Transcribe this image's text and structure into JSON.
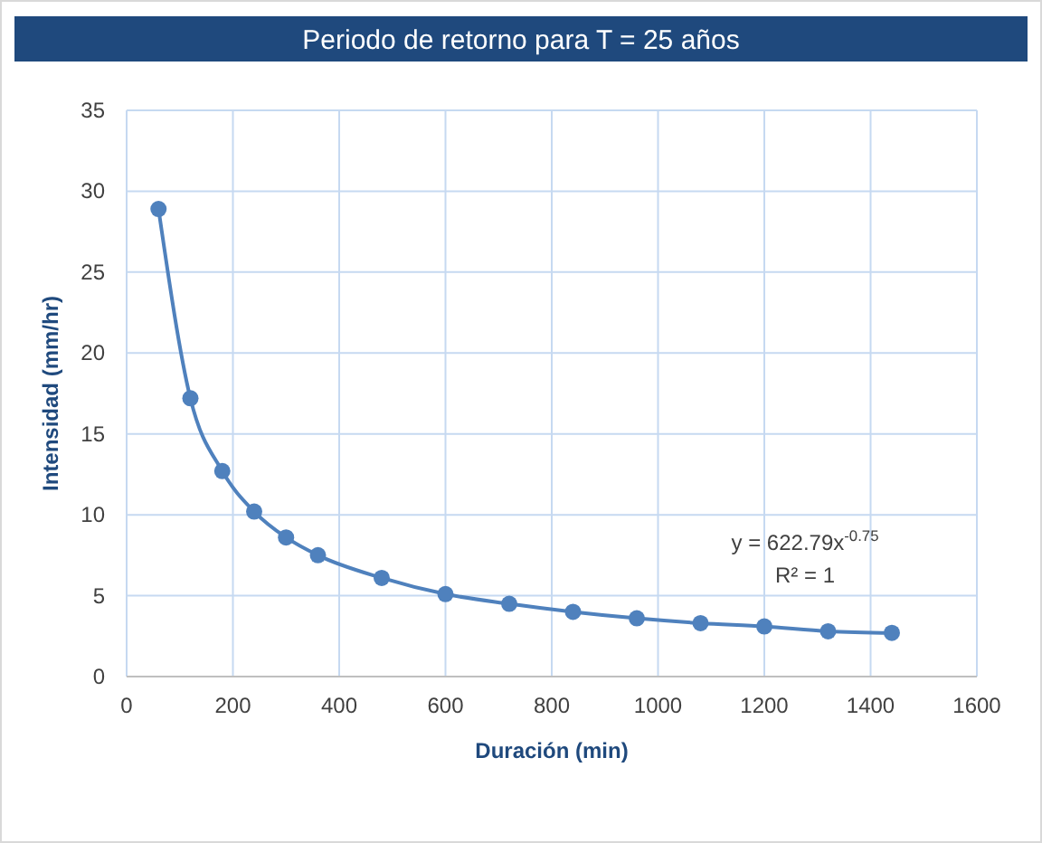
{
  "chart_data": {
    "type": "line",
    "title": "Periodo de retorno para T = 25 años",
    "xlabel": "Duración (min)",
    "ylabel": "Intensidad (mm/hr)",
    "x": [
      60,
      120,
      180,
      240,
      300,
      360,
      480,
      600,
      720,
      840,
      960,
      1080,
      1200,
      1320,
      1440
    ],
    "series": [
      {
        "color": "#4f81bd",
        "values": [
          28.9,
          17.2,
          12.7,
          10.2,
          8.6,
          7.5,
          6.1,
          5.1,
          4.5,
          4.0,
          3.6,
          3.3,
          3.1,
          2.8,
          2.7
        ]
      }
    ],
    "xlim": [
      0,
      1600
    ],
    "xticks": [
      0,
      200,
      400,
      600,
      800,
      1000,
      1200,
      1400,
      1600
    ],
    "ylim": [
      0,
      35
    ],
    "yticks": [
      0,
      5,
      10,
      15,
      20,
      25,
      30,
      35
    ],
    "grid": true,
    "marker": "circle",
    "line_style": "solid",
    "annotations": [
      "y = 622.79x$^{-0.75}$",
      "R² = 1"
    ]
  }
}
